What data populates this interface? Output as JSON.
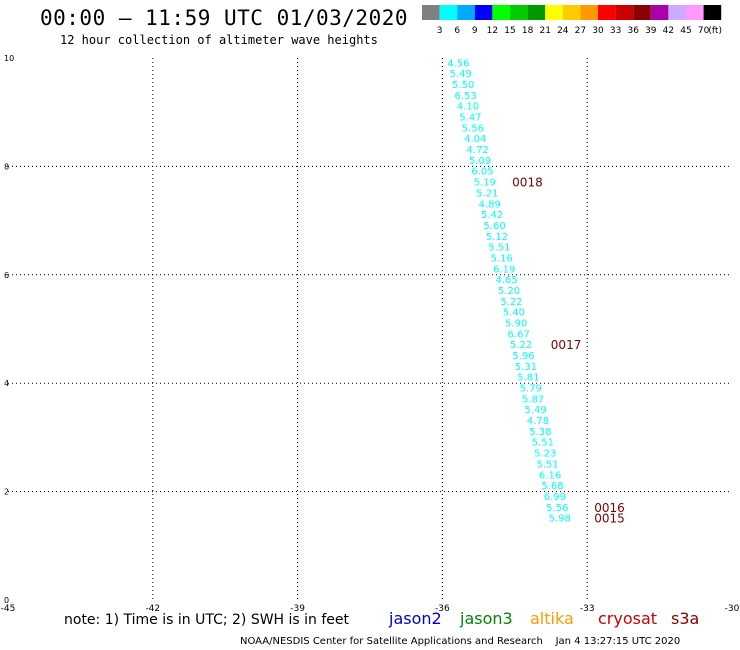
{
  "header": {
    "title": "00:00 – 11:59 UTC 01/03/2020",
    "subtitle": "12 hour collection of altimeter wave heights"
  },
  "colorbar": {
    "labels": [
      "3",
      "6",
      "9",
      "12",
      "15",
      "18",
      "21",
      "24",
      "27",
      "30",
      "33",
      "36",
      "39",
      "42",
      "45",
      "70"
    ],
    "unit": "(ft)",
    "colors": [
      "#808080",
      "#00ffff",
      "#00aaff",
      "#0000ff",
      "#00ff00",
      "#00cc00",
      "#009900",
      "#ffff00",
      "#ffcc00",
      "#ff9900",
      "#ff0000",
      "#cc0000",
      "#880000",
      "#aa00aa",
      "#ccaaff",
      "#ff99ff",
      "#000000"
    ]
  },
  "footer": {
    "note": "note: 1) Time is in UTC; 2) SWH is in feet",
    "credit": "NOAA/NESDIS Center for Satellite Applications and Research",
    "timestamp": "Jan  4 13:27:15 UTC 2020"
  },
  "satellites": [
    {
      "name": "jason2",
      "color": "#0000cc"
    },
    {
      "name": "jason3",
      "color": "#008800"
    },
    {
      "name": "altika",
      "color": "#ff9900"
    },
    {
      "name": "cryosat",
      "color": "#cc0000"
    },
    {
      "name": "s3a",
      "color": "#880000"
    }
  ],
  "chart_data": {
    "type": "scatter",
    "xlim": [
      -45,
      -30
    ],
    "ylim": [
      0,
      10
    ],
    "x_ticks": [
      "-45",
      "-42",
      "-39",
      "-36",
      "-33",
      "-30"
    ],
    "y_ticks": [
      "0",
      "2",
      "4",
      "6",
      "8",
      "10"
    ],
    "grid": true,
    "point_color": "#00ffff",
    "label_color": "#800000",
    "points": [
      {
        "x": -35.9,
        "y": 9.92,
        "label": "4.56"
      },
      {
        "x": -35.85,
        "y": 9.72,
        "label": "5.49"
      },
      {
        "x": -35.8,
        "y": 9.52,
        "label": "5.50"
      },
      {
        "x": -35.75,
        "y": 9.32,
        "label": "6.53"
      },
      {
        "x": -35.7,
        "y": 9.12,
        "label": "4.10"
      },
      {
        "x": -35.65,
        "y": 8.92,
        "label": "5.47"
      },
      {
        "x": -35.6,
        "y": 8.72,
        "label": "5.56"
      },
      {
        "x": -35.55,
        "y": 8.52,
        "label": "4.04"
      },
      {
        "x": -35.5,
        "y": 8.32,
        "label": "4.72"
      },
      {
        "x": -35.45,
        "y": 8.12,
        "label": "5.09"
      },
      {
        "x": -35.4,
        "y": 7.92,
        "label": "6.05"
      },
      {
        "x": -35.35,
        "y": 7.72,
        "label": "5.19"
      },
      {
        "x": -35.3,
        "y": 7.52,
        "label": "5.21"
      },
      {
        "x": -35.25,
        "y": 7.32,
        "label": "4.89"
      },
      {
        "x": -35.2,
        "y": 7.12,
        "label": "5.42"
      },
      {
        "x": -35.15,
        "y": 6.92,
        "label": "5.60"
      },
      {
        "x": -35.1,
        "y": 6.72,
        "label": "5.12"
      },
      {
        "x": -35.05,
        "y": 6.52,
        "label": "5.51"
      },
      {
        "x": -35.0,
        "y": 6.32,
        "label": "5.16"
      },
      {
        "x": -34.95,
        "y": 6.12,
        "label": "6.19"
      },
      {
        "x": -34.9,
        "y": 5.92,
        "label": "4.65"
      },
      {
        "x": -34.85,
        "y": 5.72,
        "label": "5.20"
      },
      {
        "x": -34.8,
        "y": 5.52,
        "label": "5.22"
      },
      {
        "x": -34.75,
        "y": 5.32,
        "label": "5.40"
      },
      {
        "x": -34.7,
        "y": 5.12,
        "label": "5.90"
      },
      {
        "x": -34.65,
        "y": 4.92,
        "label": "6.67"
      },
      {
        "x": -34.6,
        "y": 4.72,
        "label": "5.22"
      },
      {
        "x": -34.55,
        "y": 4.52,
        "label": "5.96"
      },
      {
        "x": -34.5,
        "y": 4.32,
        "label": "5.31"
      },
      {
        "x": -34.45,
        "y": 4.12,
        "label": "5.81"
      },
      {
        "x": -34.4,
        "y": 3.92,
        "label": "5.79"
      },
      {
        "x": -34.35,
        "y": 3.72,
        "label": "5.87"
      },
      {
        "x": -34.3,
        "y": 3.52,
        "label": "5.49"
      },
      {
        "x": -34.25,
        "y": 3.32,
        "label": "4.78"
      },
      {
        "x": -34.2,
        "y": 3.12,
        "label": "5.38"
      },
      {
        "x": -34.15,
        "y": 2.92,
        "label": "5.51"
      },
      {
        "x": -34.1,
        "y": 2.72,
        "label": "5.23"
      },
      {
        "x": -34.05,
        "y": 2.52,
        "label": "5.51"
      },
      {
        "x": -34.0,
        "y": 2.32,
        "label": "6.16"
      },
      {
        "x": -33.95,
        "y": 2.12,
        "label": "5.68"
      },
      {
        "x": -33.9,
        "y": 1.92,
        "label": "6.99"
      },
      {
        "x": -33.85,
        "y": 1.72,
        "label": "5.56"
      },
      {
        "x": -33.8,
        "y": 1.52,
        "label": "5.98"
      }
    ],
    "time_labels": [
      {
        "x": -35.3,
        "y": 7.72,
        "label": "0018"
      },
      {
        "x": -34.5,
        "y": 4.72,
        "label": "0017"
      },
      {
        "x": -33.6,
        "y": 1.72,
        "label": "0016"
      },
      {
        "x": -33.6,
        "y": 1.52,
        "label": "0015"
      }
    ]
  }
}
